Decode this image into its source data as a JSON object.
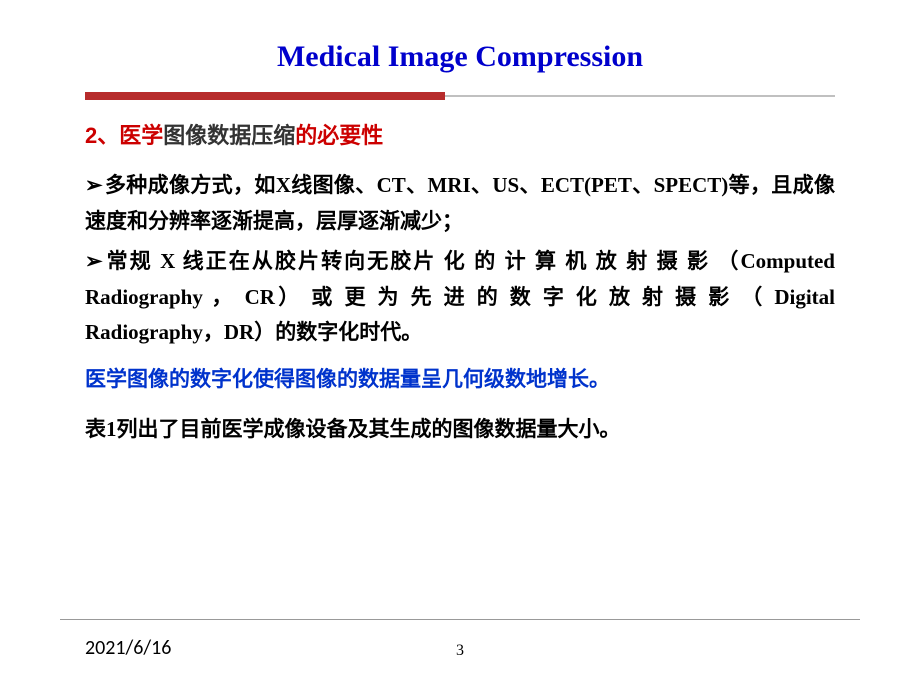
{
  "title": "Medical Image Compression",
  "subtitle": {
    "prefix": "2、医学",
    "mid": "图像数据压缩",
    "suffix": "的必要性"
  },
  "bullets": {
    "b1": "多种成像方式，如X线图像、CT、MRI、US、ECT(PET、SPECT)等，且成像速度和分辨率逐渐提高，层厚逐渐减少；",
    "b2_a": "常规 X 线正在从胶片转向无胶片 化 的 计 算 机 放 射 摄 影 （Computed Radiography ， CR） 或 更 为 先 进 的 数 字 化 放 射 摄 影 （ Digital Radiography，DR）的数字化时代。"
  },
  "blue_line": "医学图像的数字化使得图像的数据量呈几何级数地增长。",
  "table_line": "表1列出了目前医学成像设备及其生成的图像数据量大小。",
  "footer": {
    "date": "2021/6/16",
    "page": "3"
  },
  "colors": {
    "title": "#0000cc",
    "divider_red": "#b72c2c",
    "sub_red": "#cc0000",
    "blue_text": "#0033cc"
  }
}
